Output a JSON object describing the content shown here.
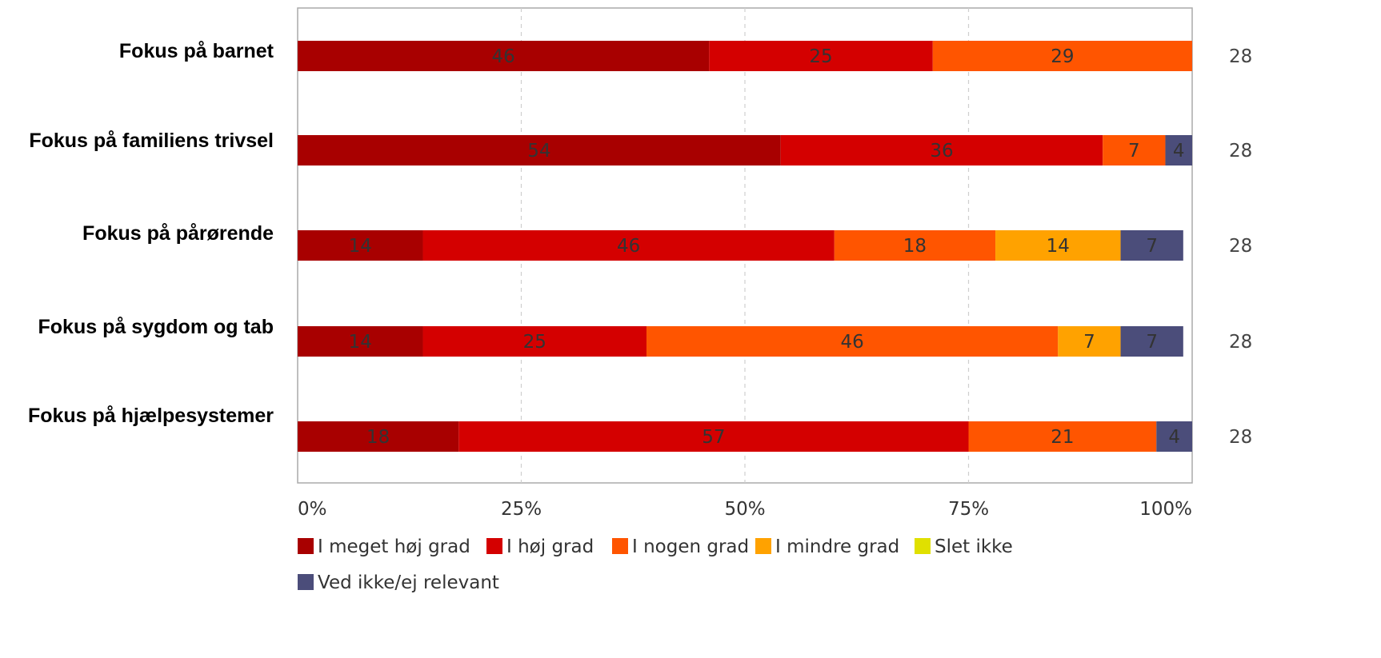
{
  "chart_data": {
    "type": "bar",
    "orientation": "horizontal",
    "stacked": true,
    "categories": [
      "Fokus på barnet",
      "Fokus på familiens trivsel",
      "Fokus på pårørende",
      "Fokus på sygdom og tab",
      "Fokus på hjælpesystemer"
    ],
    "series": [
      {
        "name": "I meget høj grad",
        "color": "#a80000",
        "values": [
          46,
          54,
          14,
          14,
          18
        ]
      },
      {
        "name": "I høj grad",
        "color": "#d40000",
        "values": [
          25,
          36,
          46,
          25,
          57
        ]
      },
      {
        "name": "I nogen grad",
        "color": "#ff5500",
        "values": [
          29,
          7,
          18,
          46,
          21
        ]
      },
      {
        "name": "I mindre grad",
        "color": "#ffa200",
        "values": [
          0,
          0,
          14,
          7,
          0
        ]
      },
      {
        "name": "Slet ikke",
        "color": "#e0e000",
        "values": [
          0,
          0,
          0,
          0,
          0
        ]
      },
      {
        "name": "Ved ikke/ej relevant",
        "color": "#4b4d7a",
        "values": [
          0,
          4,
          7,
          7,
          4
        ]
      }
    ],
    "n_values": [
      "28",
      "28",
      "28",
      "28",
      "28"
    ],
    "xlim": [
      0,
      100
    ],
    "x_ticks": [
      "0%",
      "25%",
      "50%",
      "75%",
      "100%"
    ],
    "grid": true,
    "legend_position": "bottom",
    "title": "",
    "xlabel": "",
    "ylabel": ""
  }
}
